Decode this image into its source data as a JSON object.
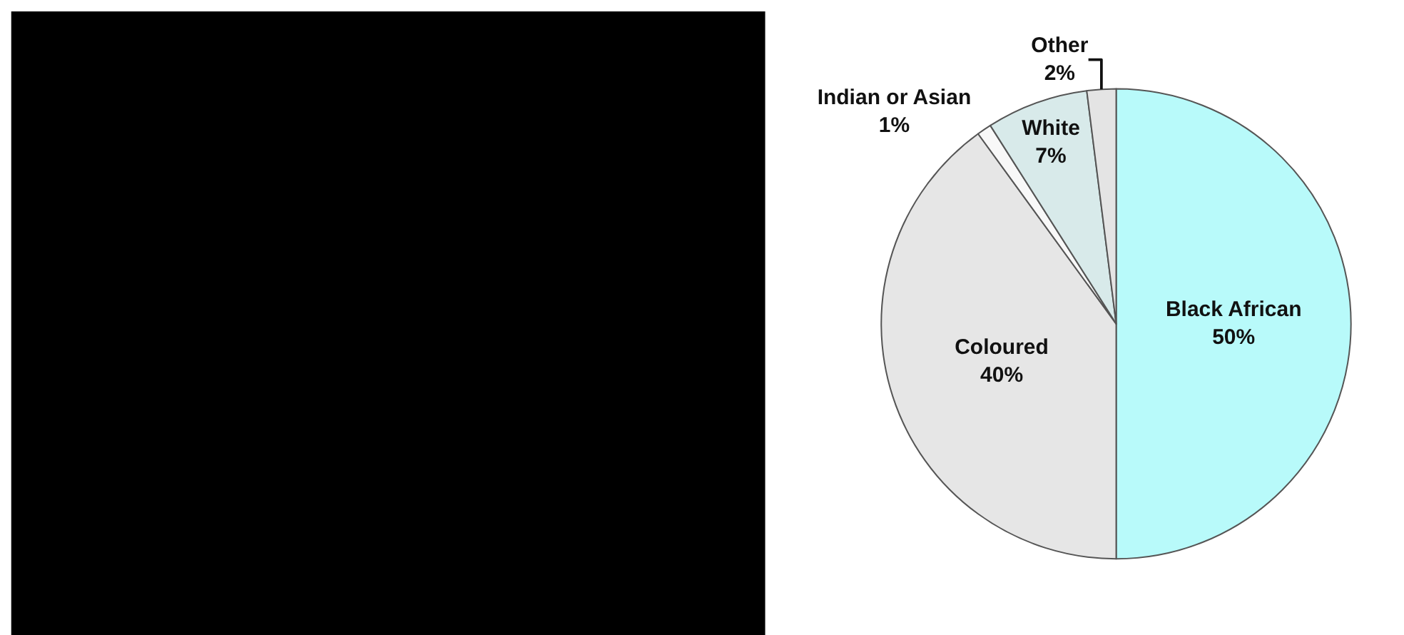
{
  "chart_data": {
    "type": "pie",
    "categories": [
      "Black African",
      "Coloured",
      "Indian or Asian",
      "White",
      "Other"
    ],
    "values": [
      50,
      40,
      1,
      7,
      2
    ],
    "value_labels": [
      "50%",
      "40%",
      "1%",
      "7%",
      "2%"
    ],
    "colors": [
      "#b8fafa",
      "#e6e6e6",
      "#f8f8f8",
      "#d8eaea",
      "#e4e4e4"
    ],
    "legend": false
  }
}
